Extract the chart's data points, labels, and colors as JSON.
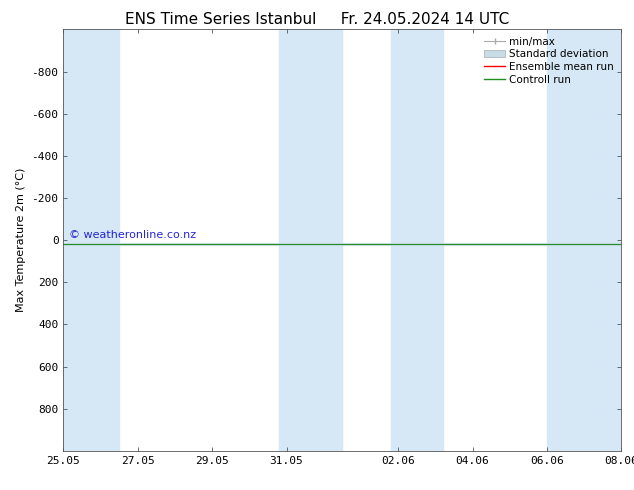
{
  "title": "ENS Time Series Istanbul",
  "subtitle": "Fr. 24.05.2024 14 UTC",
  "ylabel": "Max Temperature 2m (°C)",
  "ylim_top": -1000,
  "ylim_bottom": 1000,
  "yticks": [
    -800,
    -600,
    -400,
    -200,
    0,
    200,
    400,
    600,
    800
  ],
  "xtick_labels": [
    "25.05",
    "27.05",
    "29.05",
    "31.05",
    "02.06",
    "04.06",
    "06.06",
    "08.06"
  ],
  "xtick_positions": [
    0,
    2,
    4,
    6,
    9,
    11,
    13,
    15
  ],
  "x_min": 0,
  "x_max": 15,
  "shaded_bands": [
    [
      0,
      1.5
    ],
    [
      5.8,
      7.5
    ],
    [
      8.8,
      10.2
    ],
    [
      13.0,
      15.0
    ]
  ],
  "shaded_color": "#d6e8f5",
  "background_color": "#ffffff",
  "line_y": 20,
  "ensemble_mean_color": "#ff0000",
  "control_run_color": "#228B22",
  "minmax_color": "#aaaaaa",
  "stddev_color": "#c8dce8",
  "watermark": "© weatheronline.co.nz",
  "watermark_color": "#0000cc",
  "legend_labels": [
    "min/max",
    "Standard deviation",
    "Ensemble mean run",
    "Controll run"
  ],
  "title_fontsize": 11,
  "axis_fontsize": 8,
  "tick_fontsize": 8,
  "legend_fontsize": 7.5
}
